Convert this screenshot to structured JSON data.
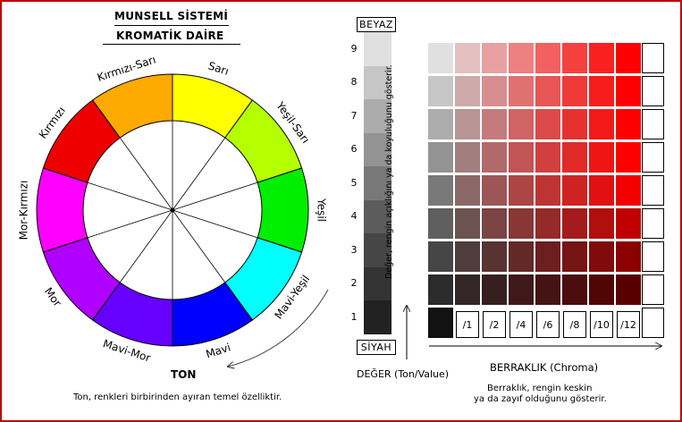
{
  "title": {
    "line1": "MUNSELL SİSTEMİ",
    "line2": "KROMATİK DAİRE"
  },
  "hue_wheel": {
    "segments": [
      {
        "label": "Sarı",
        "color": "#ffff00"
      },
      {
        "label": "Yeşil-Sarı",
        "color": "#b4ff00"
      },
      {
        "label": "Yeşil",
        "color": "#00ee00"
      },
      {
        "label": "Mavi-Yeşil",
        "color": "#00ffff"
      },
      {
        "label": "Mavi",
        "color": "#0000ff"
      },
      {
        "label": "Mavi-Mor",
        "color": "#6600ff"
      },
      {
        "label": "Mor",
        "color": "#b000ff"
      },
      {
        "label": "Mor-Kırmızı",
        "color": "#ff00ff"
      },
      {
        "label": "Kırmızı",
        "color": "#ee0000"
      },
      {
        "label": "Kırmızı-Sarı",
        "color": "#ffaa00"
      }
    ],
    "axis_label": "TON",
    "note": "Ton, renkleri birbirinden ayıran temel özelliktir."
  },
  "value_scale": {
    "top_label": "BEYAZ",
    "bottom_label": "SİYAH",
    "levels": [
      "1",
      "2",
      "3",
      "4",
      "5",
      "6",
      "7",
      "8",
      "9"
    ],
    "gray_colors": [
      "#222222",
      "#333333",
      "#464646",
      "#5c5c5c",
      "#787878",
      "#939393",
      "#acacac",
      "#c6c6c6",
      "#e0e0e0"
    ],
    "axis_label": "DEĞER (Ton/Value)",
    "vertical_note": "Değer, rengin açıklığını ya da koyuluğunu gösterir."
  },
  "chroma_grid": {
    "chroma_labels": [
      "/1",
      "/2",
      "/4",
      "/6",
      "/8",
      "/10",
      "/12"
    ],
    "axis_label": "BERRAKLIK  (Chroma)",
    "note_line1": "Berraklık, rengin keskin",
    "note_line2": "ya da zayıf olduğunu gösterir."
  }
}
